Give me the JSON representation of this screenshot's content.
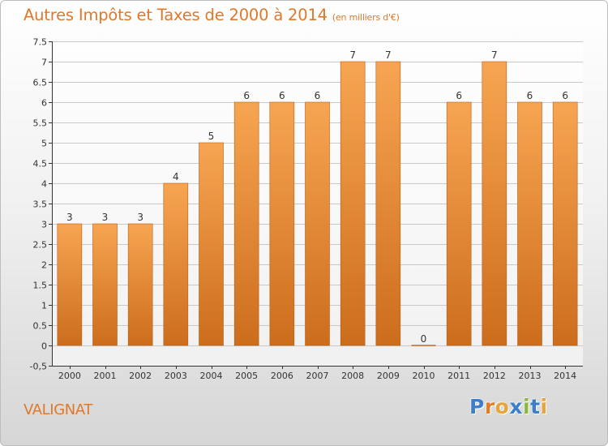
{
  "header": {
    "title": "Autres Impôts et Taxes de 2000 à 2014",
    "subtitle": "(en milliers d'€)"
  },
  "footer": {
    "place": "VALIGNAT",
    "logo_letters": [
      "P",
      "r",
      "o",
      "x",
      "i",
      "t",
      "i"
    ],
    "logo_colors": [
      "#3b7ec9",
      "#e07c2a",
      "#e8a33a",
      "#3b7ec9",
      "#8ab93c",
      "#3b7ec9",
      "#e8a33a"
    ]
  },
  "colors": {
    "bar_light": "#f7a552",
    "bar_dark": "#cc6d1c",
    "bar_edge": "#b85f14",
    "grid": "#c9c9c9",
    "axis": "#333333",
    "title": "#e0782a"
  },
  "chart_data": {
    "type": "bar",
    "title": "Autres Impôts et Taxes de 2000 à 2014",
    "subtitle": "(en milliers d'€)",
    "xlabel": "",
    "ylabel": "",
    "categories": [
      "2000",
      "2001",
      "2002",
      "2003",
      "2004",
      "2005",
      "2006",
      "2007",
      "2008",
      "2009",
      "2010",
      "2011",
      "2012",
      "2013",
      "2014"
    ],
    "values": [
      3,
      3,
      3,
      4,
      5,
      6,
      6,
      6,
      7,
      7,
      0,
      6,
      7,
      6,
      6
    ],
    "data_labels": [
      "3",
      "3",
      "3",
      "4",
      "5",
      "6",
      "6",
      "6",
      "7",
      "7",
      "0",
      "6",
      "7",
      "6",
      "6"
    ],
    "ylim": [
      -0.5,
      7.5
    ],
    "yticks": [
      -0.5,
      0,
      0.5,
      1,
      1.5,
      2,
      2.5,
      3,
      3.5,
      4,
      4.5,
      5,
      5.5,
      6,
      6.5,
      7,
      7.5
    ],
    "ytick_labels": [
      "-0,5",
      "0",
      "0.5",
      "1",
      "1.5",
      "2",
      "2.5",
      "3",
      "3.5",
      "4",
      "4.5",
      "5",
      "5.5",
      "6",
      "6.5",
      "7",
      "7.5"
    ],
    "grid": true,
    "legend": "none"
  }
}
